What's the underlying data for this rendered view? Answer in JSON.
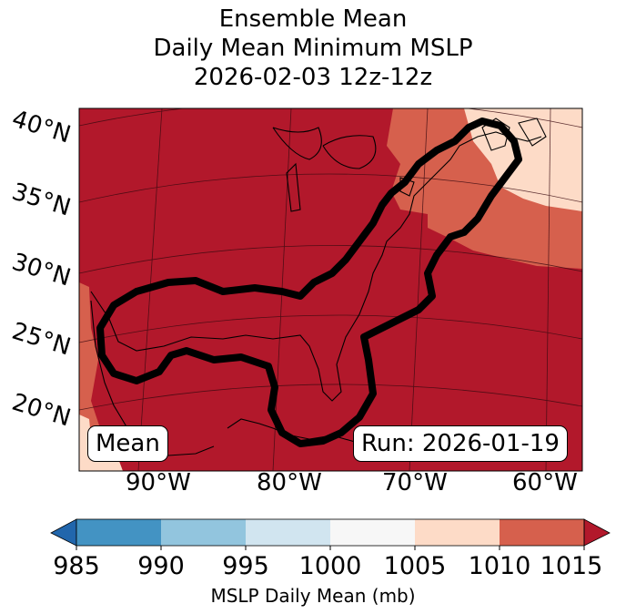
{
  "title": {
    "line1": "Ensemble Mean",
    "line2": "Daily Mean Minimum MSLP",
    "line3": "2026-02-03 12z-12z"
  },
  "map": {
    "lat_labels": [
      "40°N",
      "35°N",
      "30°N",
      "25°N",
      "20°N"
    ],
    "lon_labels": [
      "90°W",
      "80°W",
      "70°W",
      "60°W"
    ],
    "mean_tag": "Mean",
    "run_tag": "Run: 2026-01-19",
    "field_color": "#b2182b",
    "contour_color": "#000000"
  },
  "colorbar": {
    "ticks": [
      "985",
      "990",
      "995",
      "1000",
      "1005",
      "1010",
      "1015"
    ],
    "colors": [
      "#2166ac",
      "#4393c3",
      "#92c5de",
      "#d1e5f0",
      "#f7f7f7",
      "#fddbc7",
      "#d6604d",
      "#b2182b"
    ],
    "label": "MSLP Daily Mean (mb)"
  }
}
